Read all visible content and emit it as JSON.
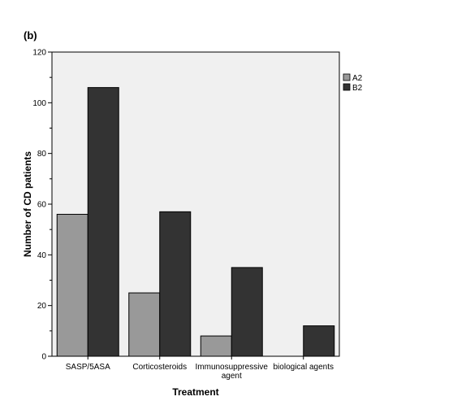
{
  "panel_label": "(b)",
  "chart_data": {
    "type": "bar",
    "xlabel": "Treatment",
    "ylabel": "Number of CD patients",
    "ylim": [
      0,
      120
    ],
    "yticks": [
      0,
      20,
      40,
      60,
      80,
      100,
      120
    ],
    "grid": false,
    "legend_position": "top-right",
    "categories": [
      [
        "SASP/5ASA"
      ],
      [
        "Corticosteroids"
      ],
      [
        "Immunosuppressive",
        "agent"
      ],
      [
        "biological agents"
      ]
    ],
    "series": [
      {
        "name": "A2",
        "color": "#999999",
        "values": [
          56,
          25,
          8,
          0
        ]
      },
      {
        "name": "B2",
        "color": "#333333",
        "values": [
          106,
          57,
          35,
          12
        ]
      }
    ],
    "plot_background": "#f0f0f0"
  }
}
